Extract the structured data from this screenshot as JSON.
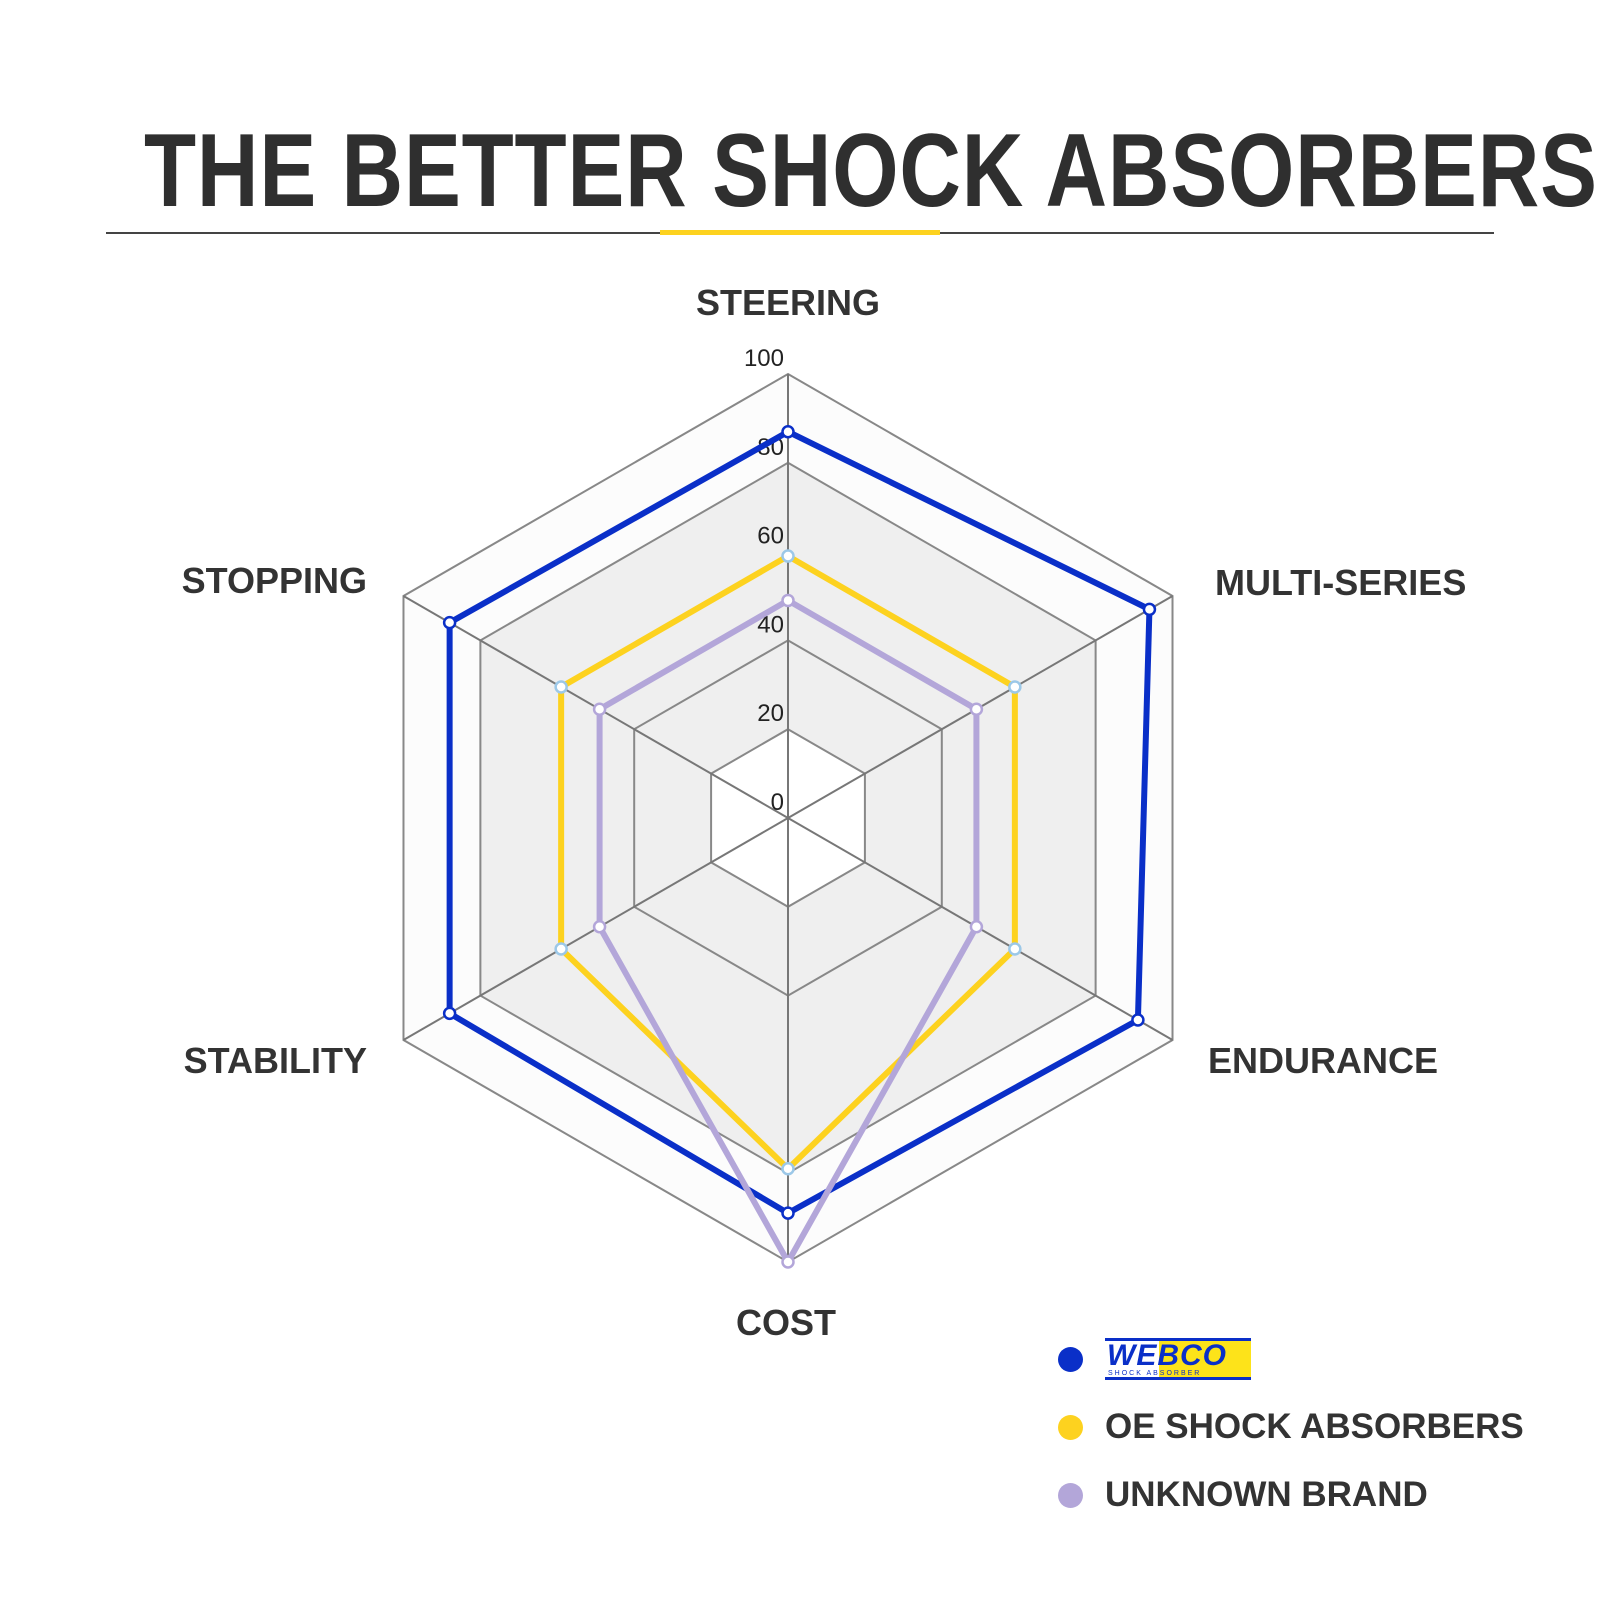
{
  "title": "THE BETTER SHOCK ABSORBERS",
  "chart_data": {
    "type": "radar",
    "axes": [
      "STEERING",
      "MULTI-SERIES",
      "ENDURANCE",
      "COST",
      "STABILITY",
      "STOPPING"
    ],
    "range": [
      0,
      100
    ],
    "ticks": [
      0,
      20,
      40,
      60,
      80,
      100
    ],
    "series": [
      {
        "name": "WEBCO SHOCK ABSORBER",
        "color": "#0a2fc8",
        "values": [
          87,
          94,
          91,
          89,
          88,
          88
        ]
      },
      {
        "name": "OE SHOCK ABSORBERS",
        "color": "#fdd21f",
        "values": [
          59,
          59,
          59,
          79,
          59,
          59
        ]
      },
      {
        "name": "UNKNOWN BRAND",
        "color": "#b3a6d9",
        "values": [
          49,
          49,
          49,
          100,
          49,
          49
        ]
      }
    ],
    "legend": "bottom-right"
  },
  "legend": {
    "logo_text": "WEBCO",
    "logo_sub": "SHOCK   ABSORBER",
    "oe": "OE SHOCK ABSORBERS",
    "unknown": "UNKNOWN BRAND"
  }
}
